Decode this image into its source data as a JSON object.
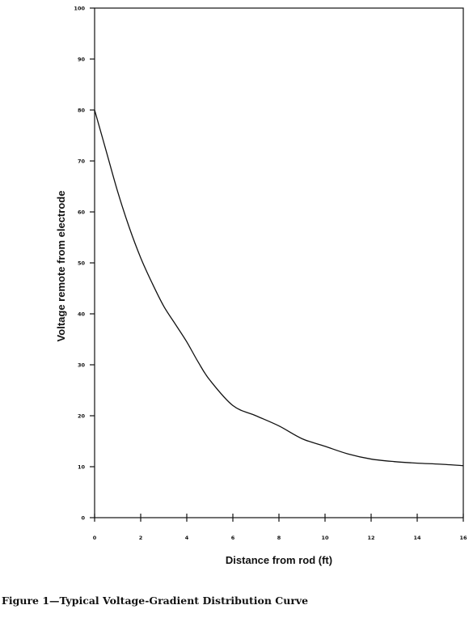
{
  "caption": "Figure 1—Typical Voltage-Gradient Distribution Curve",
  "chart_data": {
    "type": "line",
    "title": "",
    "xlabel": "Distance from rod (ft)",
    "ylabel": "Voltage remote from electrode",
    "xlim": [
      0,
      16
    ],
    "ylim": [
      0,
      100
    ],
    "xticks": [
      0,
      2,
      4,
      6,
      8,
      10,
      12,
      14,
      16
    ],
    "yticks": [
      0,
      10,
      20,
      30,
      40,
      50,
      60,
      70,
      80,
      90,
      100
    ],
    "grid": false,
    "legend": "none",
    "line_color": "#111111",
    "series": [
      {
        "x": [
          0,
          0.5,
          1,
          1.5,
          2,
          2.5,
          3,
          3.5,
          4,
          4.5,
          5,
          6,
          7,
          8,
          9,
          10,
          11,
          12,
          13,
          14,
          15,
          16
        ],
        "y": [
          80,
          72,
          64,
          57,
          51,
          46,
          41.5,
          38,
          34.5,
          30.5,
          27,
          22,
          20,
          18,
          15.5,
          14,
          12.5,
          11.5,
          11,
          10.7,
          10.5,
          10.2
        ]
      }
    ]
  }
}
